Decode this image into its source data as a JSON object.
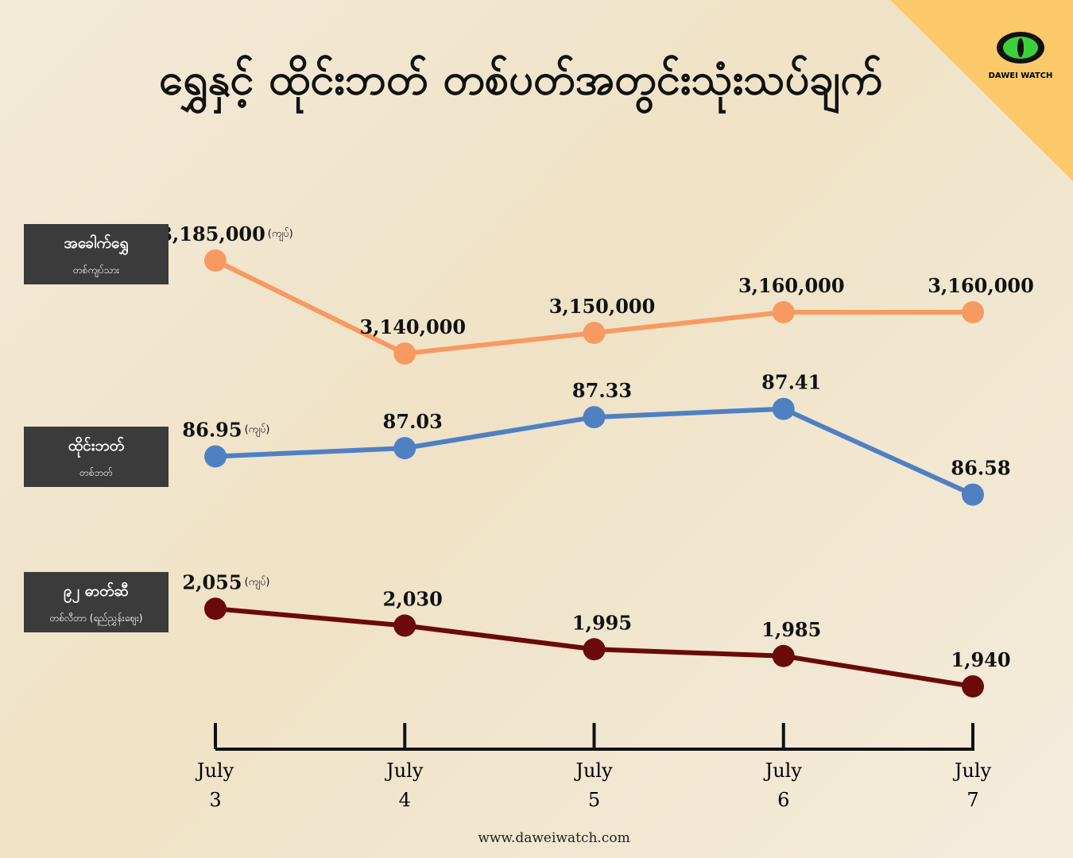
{
  "title": "ရွှေနှင့် ထိုင်းဘတ် တစ်ပတ်အတွင်းသုံးသပ်ချက်",
  "logo": "DAWEI WATCH",
  "website": "www.daweiwatch.com",
  "chart_data": {
    "type": "line",
    "categories": [
      "July 3",
      "July 4",
      "July 5",
      "July 6",
      "July 7"
    ],
    "series": [
      {
        "name": "အခေါက်ရွှေ",
        "sublabel": "တစ်ကျပ်သား",
        "unit": "(ကျပ်)",
        "color": "#f79a62",
        "ylim": [
          3130000,
          3190000
        ],
        "values": [
          3185000,
          3140000,
          3150000,
          3160000,
          3160000
        ],
        "value_labels": [
          "3,185,000",
          "3,140,000",
          "3,150,000",
          "3,160,000",
          "3,160,000"
        ]
      },
      {
        "name": "ထိုင်းဘတ်",
        "sublabel": "တစ်ဘတ်",
        "unit": "(ကျပ်)",
        "color": "#4f80c2",
        "ylim": [
          86.5,
          87.5
        ],
        "values": [
          86.95,
          87.03,
          87.33,
          87.41,
          86.58
        ]
      },
      {
        "name": "၉၂ ဓာတ်ဆီ",
        "sublabel": "တစ်လီတာ (ရည်ညွှန်းဈေး)",
        "unit": "(ကျပ်)",
        "color": "#6b0a0a",
        "ylim": [
          1900,
          2100
        ],
        "values": [
          2055,
          2030,
          1995,
          1985,
          1940
        ],
        "value_labels": [
          "2,055",
          "2,030",
          "1,995",
          "1,985",
          "1,940"
        ]
      }
    ]
  }
}
